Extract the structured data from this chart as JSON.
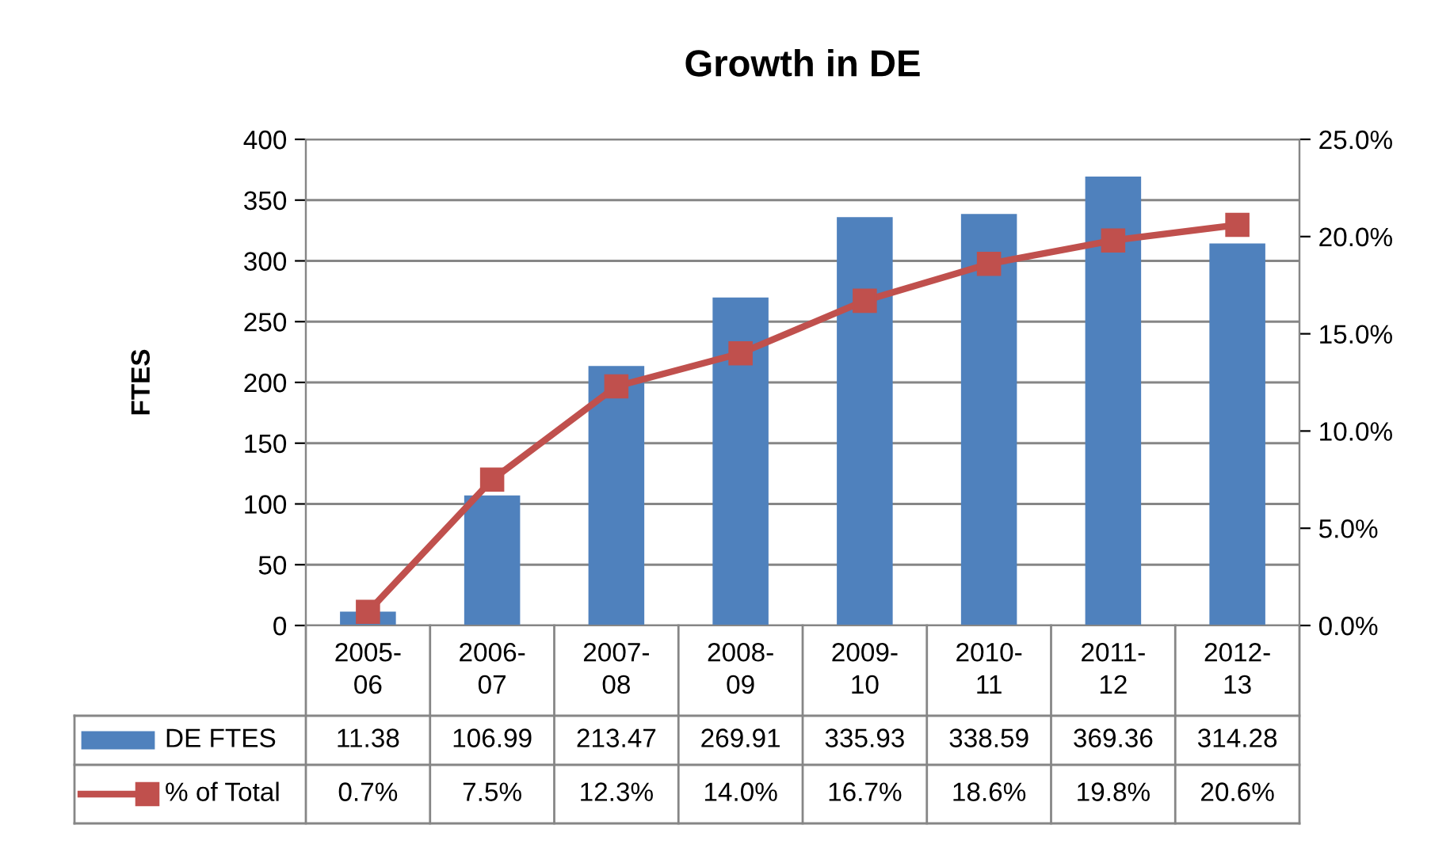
{
  "chart_data": {
    "type": "bar",
    "title": "Growth in DE",
    "ylabel": "FTES",
    "categories": [
      "2005-06",
      "2006-07",
      "2007-08",
      "2008-09",
      "2009-10",
      "2010-11",
      "2011-12",
      "2012-13"
    ],
    "series": [
      {
        "name": "DE FTES",
        "color": "#4f81bd",
        "values": [
          11.38,
          106.99,
          213.47,
          269.91,
          335.93,
          338.59,
          369.36,
          314.28
        ],
        "value_labels": [
          "11.38",
          "106.99",
          "213.47",
          "269.91",
          "335.93",
          "338.59",
          "369.36",
          "314.28"
        ]
      },
      {
        "name": "% of Total",
        "type": "line",
        "axis": "y2",
        "color": "#c0504d",
        "marker": "square",
        "values": [
          0.7,
          7.5,
          12.3,
          14.0,
          16.7,
          18.6,
          19.8,
          20.6
        ],
        "value_labels": [
          "0.7%",
          "7.5%",
          "12.3%",
          "14.0%",
          "16.7%",
          "18.6%",
          "19.8%",
          "20.6%"
        ]
      }
    ],
    "ylim": [
      0,
      400
    ],
    "yticks": [
      0,
      50,
      100,
      150,
      200,
      250,
      300,
      350,
      400
    ],
    "y2lim": [
      0,
      25
    ],
    "y2ticks": [
      {
        "value": 0,
        "label": "0.0%"
      },
      {
        "value": 5,
        "label": "5.0%"
      },
      {
        "value": 10,
        "label": "10.0%"
      },
      {
        "value": 15,
        "label": "15.0%"
      },
      {
        "value": 20,
        "label": "20.0%"
      },
      {
        "value": 25,
        "label": "25.0%"
      }
    ],
    "grid": "y",
    "legend": "bottom"
  }
}
